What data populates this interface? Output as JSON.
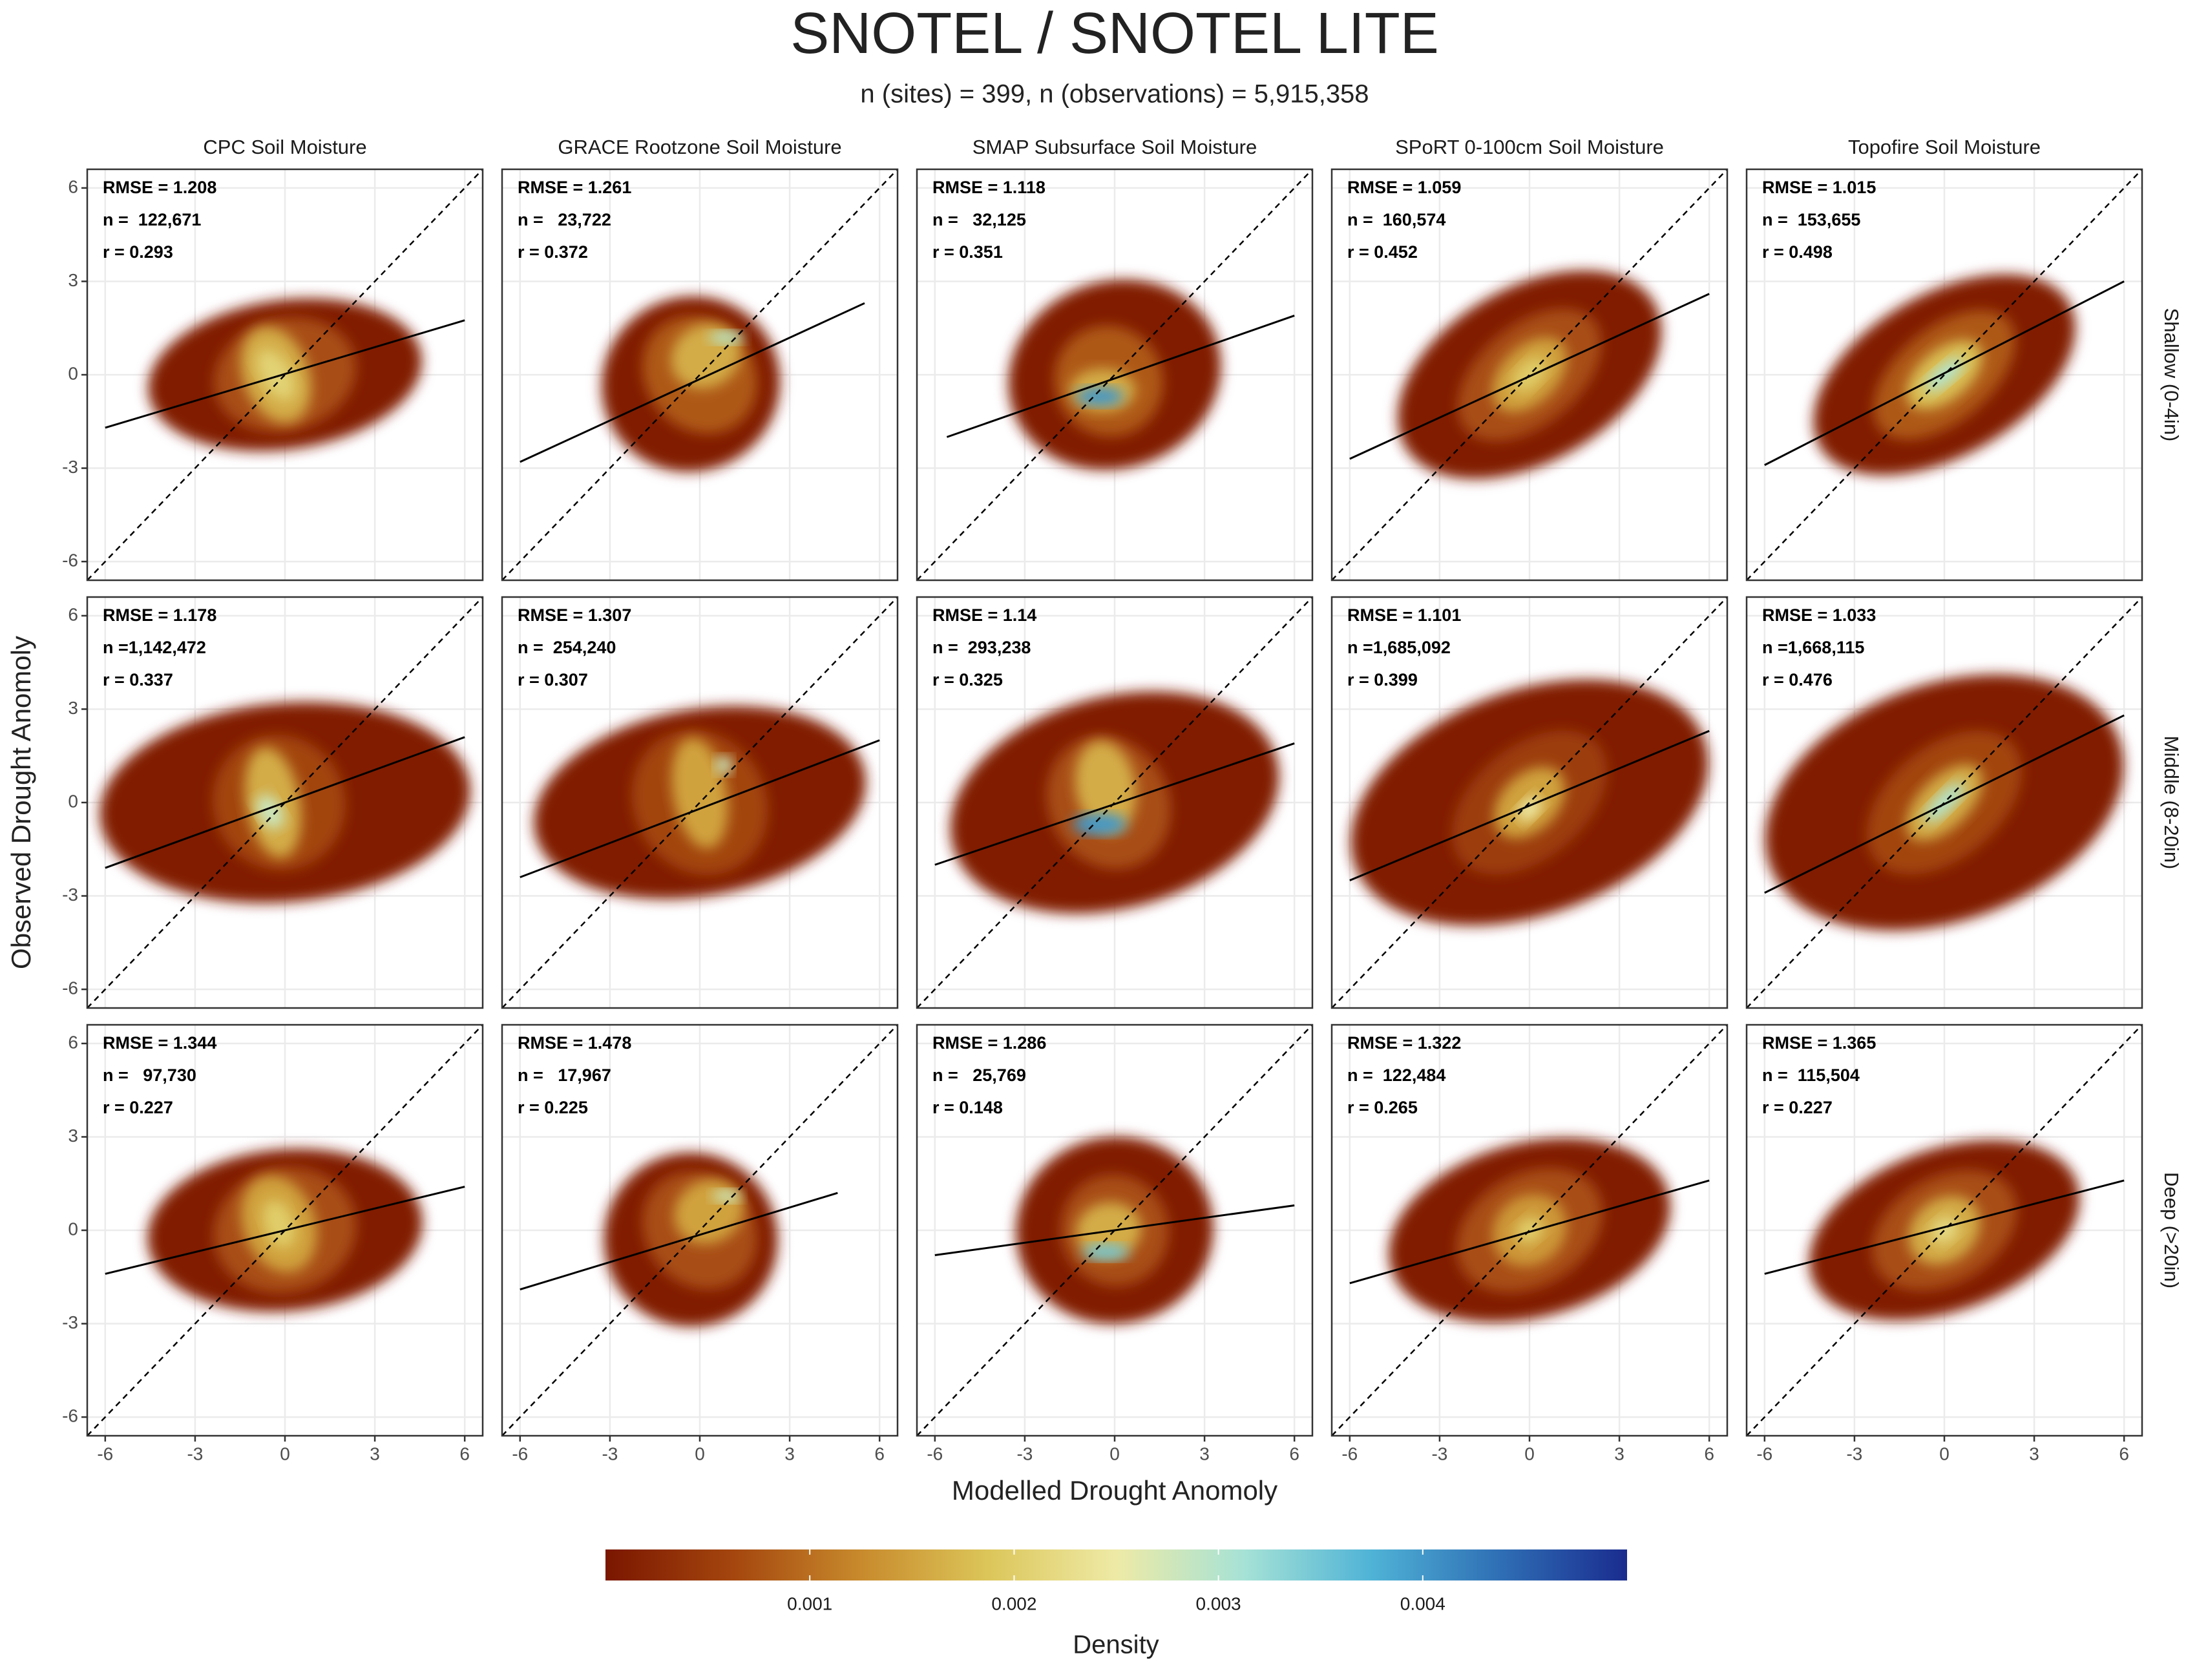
{
  "chart_data": {
    "type": "density2d",
    "title": "SNOTEL / SNOTEL LITE",
    "subtitle": "n (sites) = 399, n (observations) = 5,915,358",
    "x_label": "Modelled Drought Anomoly",
    "y_label": "Observed Drought Anomoly",
    "columns": [
      "CPC Soil Moisture",
      "GRACE Rootzone Soil Moisture",
      "SMAP Subsurface Soil Moisture",
      "SPoRT 0-100cm Soil Moisture",
      "Topofire Soil Moisture"
    ],
    "rows": [
      "Shallow (0-4in)",
      "Middle (8-20in)",
      "Deep (>20in)"
    ],
    "xlim": [
      -6.6,
      6.6
    ],
    "ylim": [
      -6.6,
      6.6
    ],
    "xticks": [
      -6,
      -3,
      0,
      3,
      6
    ],
    "yticks": [
      -6,
      -3,
      0,
      3,
      6
    ],
    "grid": true,
    "identity_line": true,
    "fit_color": "#000000",
    "colorbar": {
      "title": "Density",
      "lim": [
        0,
        0.005
      ],
      "ticks": [
        0.001,
        0.002,
        0.003,
        0.004
      ],
      "colors": [
        "#7a1600",
        "#a4460e",
        "#c88a2c",
        "#dcc65a",
        "#eeeaa6",
        "#a6e2d6",
        "#4fb3d6",
        "#2f6fb5",
        "#1a2c8f"
      ]
    },
    "panels": [
      [
        {
          "stats": [
            "RMSE = 1.208",
            "n =  122,671",
            "r = 0.293"
          ],
          "fit": {
            "x": [
              -6,
              6
            ],
            "y": [
              -1.7,
              1.75
            ]
          },
          "blobs": [
            {
              "x": 0,
              "y": 0,
              "rx": 4.6,
              "ry": 2.4,
              "angle": 8,
              "density": 0.0001
            },
            {
              "x": 0,
              "y": 0,
              "rx": 2.4,
              "ry": 1.8,
              "angle": 15,
              "density": 0.0007
            },
            {
              "x": -0.3,
              "y": 0,
              "rx": 1.1,
              "ry": 1.6,
              "angle": 20,
              "density": 0.0016
            },
            {
              "x": -0.3,
              "y": 0,
              "rx": 0.5,
              "ry": 0.9,
              "angle": 30,
              "density": 0.0021
            }
          ]
        },
        {
          "stats": [
            "RMSE = 1.261",
            "n =   23,722",
            "r = 0.372"
          ],
          "fit": {
            "x": [
              -6,
              5.5
            ],
            "y": [
              -2.8,
              2.3
            ]
          },
          "blobs": [
            {
              "x": -0.3,
              "y": -0.3,
              "rx": 3,
              "ry": 2.8,
              "angle": 30,
              "density": 0.0001
            },
            {
              "x": 0,
              "y": 0,
              "rx": 1.8,
              "ry": 2,
              "angle": 40,
              "density": 0.0008
            },
            {
              "x": 0.2,
              "y": 0.6,
              "rx": 1.2,
              "ry": 1,
              "angle": 30,
              "density": 0.0016
            },
            {
              "x": 0.9,
              "y": 1.2,
              "rx": 0.6,
              "ry": 0.2,
              "angle": 0,
              "density": 0.003
            }
          ]
        },
        {
          "stats": [
            "RMSE = 1.118",
            "n =   32,125",
            "r = 0.351"
          ],
          "fit": {
            "x": [
              -5.6,
              6
            ],
            "y": [
              -2,
              1.9
            ]
          },
          "blobs": [
            {
              "x": 0,
              "y": 0,
              "rx": 3.6,
              "ry": 3,
              "angle": 20,
              "density": 0.0001
            },
            {
              "x": -0.2,
              "y": -0.2,
              "rx": 1.8,
              "ry": 1.8,
              "angle": 30,
              "density": 0.0008
            },
            {
              "x": -0.4,
              "y": -0.5,
              "rx": 1.1,
              "ry": 0.7,
              "angle": 0,
              "density": 0.0016
            },
            {
              "x": -0.5,
              "y": -0.7,
              "rx": 0.8,
              "ry": 0.3,
              "angle": 0,
              "density": 0.004
            }
          ]
        },
        {
          "stats": [
            "RMSE = 1.059",
            "n =  160,574",
            "r = 0.452"
          ],
          "fit": {
            "x": [
              -6,
              6
            ],
            "y": [
              -2.7,
              2.6
            ]
          },
          "blobs": [
            {
              "x": 0,
              "y": 0,
              "rx": 4.8,
              "ry": 2.8,
              "angle": 30,
              "density": 0.0001
            },
            {
              "x": 0,
              "y": 0,
              "rx": 2.8,
              "ry": 1.6,
              "angle": 40,
              "density": 0.0007
            },
            {
              "x": 0,
              "y": 0,
              "rx": 1.5,
              "ry": 0.9,
              "angle": 45,
              "density": 0.0015
            },
            {
              "x": 0,
              "y": 0,
              "rx": 0.7,
              "ry": 0.4,
              "angle": 45,
              "density": 0.002
            }
          ]
        },
        {
          "stats": [
            "RMSE = 1.015",
            "n =  153,655",
            "r = 0.498"
          ],
          "fit": {
            "x": [
              -6,
              6
            ],
            "y": [
              -2.9,
              3
            ]
          },
          "blobs": [
            {
              "x": 0,
              "y": 0,
              "rx": 4.8,
              "ry": 2.6,
              "angle": 30,
              "density": 0.0001
            },
            {
              "x": 0,
              "y": 0,
              "rx": 2.8,
              "ry": 1.5,
              "angle": 40,
              "density": 0.0008
            },
            {
              "x": 0,
              "y": 0,
              "rx": 1.5,
              "ry": 0.8,
              "angle": 40,
              "density": 0.0018
            },
            {
              "x": 0,
              "y": 0,
              "rx": 0.8,
              "ry": 0.3,
              "angle": 40,
              "density": 0.003
            }
          ]
        }
      ],
      [
        {
          "stats": [
            "RMSE = 1.178",
            "n =1,142,472",
            "r = 0.337"
          ],
          "fit": {
            "x": [
              -6,
              6
            ],
            "y": [
              -2.1,
              2.1
            ]
          },
          "blobs": [
            {
              "x": 0,
              "y": 0,
              "rx": 6.2,
              "ry": 3.2,
              "angle": 5,
              "density": 0.0001
            },
            {
              "x": -0.2,
              "y": 0,
              "rx": 2.2,
              "ry": 2.2,
              "angle": 30,
              "density": 0.0006
            },
            {
              "x": -0.4,
              "y": 0,
              "rx": 0.9,
              "ry": 1.8,
              "angle": 10,
              "density": 0.0016
            },
            {
              "x": -0.5,
              "y": -0.3,
              "rx": 0.4,
              "ry": 0.6,
              "angle": 30,
              "density": 0.0028
            }
          ]
        },
        {
          "stats": [
            "RMSE = 1.307",
            "n =  254,240",
            "r = 0.307"
          ],
          "fit": {
            "x": [
              -6,
              6
            ],
            "y": [
              -2.4,
              2
            ]
          },
          "blobs": [
            {
              "x": 0,
              "y": 0,
              "rx": 5.6,
              "ry": 3,
              "angle": 10,
              "density": 0.0001
            },
            {
              "x": 0,
              "y": 0,
              "rx": 2.2,
              "ry": 2.4,
              "angle": 30,
              "density": 0.0006
            },
            {
              "x": 0,
              "y": 0.3,
              "rx": 0.9,
              "ry": 1.8,
              "angle": 10,
              "density": 0.0015
            },
            {
              "x": 0.8,
              "y": 1.2,
              "rx": 0.3,
              "ry": 0.3,
              "angle": 0,
              "density": 0.0028
            }
          ]
        },
        {
          "stats": [
            "RMSE = 1.14",
            "n =  293,238",
            "r = 0.325"
          ],
          "fit": {
            "x": [
              -6,
              6
            ],
            "y": [
              -2,
              1.9
            ]
          },
          "blobs": [
            {
              "x": 0,
              "y": 0,
              "rx": 5.6,
              "ry": 3.4,
              "angle": 15,
              "density": 0.0001
            },
            {
              "x": -0.2,
              "y": 0,
              "rx": 2,
              "ry": 2.2,
              "angle": 30,
              "density": 0.0007
            },
            {
              "x": -0.3,
              "y": 0.5,
              "rx": 1,
              "ry": 1.5,
              "angle": 10,
              "density": 0.0016
            },
            {
              "x": -0.5,
              "y": -0.7,
              "rx": 0.9,
              "ry": 0.35,
              "angle": 0,
              "density": 0.004
            }
          ]
        },
        {
          "stats": [
            "RMSE = 1.101",
            "n =1,685,092",
            "r = 0.399"
          ],
          "fit": {
            "x": [
              -6,
              6
            ],
            "y": [
              -2.5,
              2.3
            ]
          },
          "blobs": [
            {
              "x": 0,
              "y": 0,
              "rx": 6.2,
              "ry": 3.6,
              "angle": 20,
              "density": 0.0001
            },
            {
              "x": 0,
              "y": 0,
              "rx": 3,
              "ry": 1.8,
              "angle": 40,
              "density": 0.0005
            },
            {
              "x": 0,
              "y": 0,
              "rx": 1.4,
              "ry": 0.9,
              "angle": 45,
              "density": 0.0015
            },
            {
              "x": 0,
              "y": -0.2,
              "rx": 0.5,
              "ry": 0.3,
              "angle": 45,
              "density": 0.0025
            }
          ]
        },
        {
          "stats": [
            "RMSE = 1.033",
            "n =1,668,115",
            "r = 0.476"
          ],
          "fit": {
            "x": [
              -6,
              6
            ],
            "y": [
              -2.9,
              2.8
            ]
          },
          "blobs": [
            {
              "x": 0,
              "y": 0,
              "rx": 6.2,
              "ry": 3.8,
              "angle": 20,
              "density": 0.0001
            },
            {
              "x": 0,
              "y": 0,
              "rx": 3,
              "ry": 1.8,
              "angle": 40,
              "density": 0.0006
            },
            {
              "x": 0,
              "y": 0,
              "rx": 1.6,
              "ry": 0.8,
              "angle": 45,
              "density": 0.0016
            },
            {
              "x": 0,
              "y": 0,
              "rx": 0.9,
              "ry": 0.3,
              "angle": 45,
              "density": 0.003
            }
          ]
        }
      ],
      [
        {
          "stats": [
            "RMSE = 1.344",
            "n =   97,730",
            "r = 0.227"
          ],
          "fit": {
            "x": [
              -6,
              6
            ],
            "y": [
              -1.4,
              1.4
            ]
          },
          "blobs": [
            {
              "x": 0,
              "y": 0,
              "rx": 4.6,
              "ry": 2.6,
              "angle": 5,
              "density": 0.0001
            },
            {
              "x": 0,
              "y": 0,
              "rx": 2.4,
              "ry": 2,
              "angle": 15,
              "density": 0.0007
            },
            {
              "x": -0.2,
              "y": 0.2,
              "rx": 1.2,
              "ry": 1.6,
              "angle": 20,
              "density": 0.0015
            },
            {
              "x": -0.2,
              "y": 0.2,
              "rx": 0.5,
              "ry": 0.8,
              "angle": 20,
              "density": 0.002
            }
          ]
        },
        {
          "stats": [
            "RMSE = 1.478",
            "n =   17,967",
            "r = 0.225"
          ],
          "fit": {
            "x": [
              -6,
              4.6
            ],
            "y": [
              -1.9,
              1.2
            ]
          },
          "blobs": [
            {
              "x": -0.3,
              "y": -0.3,
              "rx": 2.9,
              "ry": 2.8,
              "angle": 30,
              "density": 0.0001
            },
            {
              "x": 0,
              "y": 0,
              "rx": 1.8,
              "ry": 2,
              "angle": 40,
              "density": 0.0007
            },
            {
              "x": 0.3,
              "y": 0.6,
              "rx": 1.2,
              "ry": 1,
              "angle": 30,
              "density": 0.0015
            },
            {
              "x": 0.9,
              "y": 1.1,
              "rx": 0.5,
              "ry": 0.2,
              "angle": 0,
              "density": 0.0028
            }
          ]
        },
        {
          "stats": [
            "RMSE = 1.286",
            "n =   25,769",
            "r = 0.148"
          ],
          "fit": {
            "x": [
              -6,
              6
            ],
            "y": [
              -0.8,
              0.8
            ]
          },
          "blobs": [
            {
              "x": 0,
              "y": 0,
              "rx": 3.3,
              "ry": 3,
              "angle": 10,
              "density": 0.0001
            },
            {
              "x": 0,
              "y": 0,
              "rx": 1.8,
              "ry": 1.8,
              "angle": 20,
              "density": 0.0007
            },
            {
              "x": -0.2,
              "y": 0,
              "rx": 1.1,
              "ry": 0.9,
              "angle": 10,
              "density": 0.0016
            },
            {
              "x": -0.3,
              "y": -0.7,
              "rx": 0.8,
              "ry": 0.25,
              "angle": 0,
              "density": 0.0035
            }
          ]
        },
        {
          "stats": [
            "RMSE = 1.322",
            "n =  122,484",
            "r = 0.265"
          ],
          "fit": {
            "x": [
              -6,
              6
            ],
            "y": [
              -1.7,
              1.6
            ]
          },
          "blobs": [
            {
              "x": 0,
              "y": 0,
              "rx": 4.8,
              "ry": 2.8,
              "angle": 15,
              "density": 0.0001
            },
            {
              "x": 0,
              "y": 0,
              "rx": 2.6,
              "ry": 1.8,
              "angle": 30,
              "density": 0.0007
            },
            {
              "x": 0,
              "y": 0,
              "rx": 1.3,
              "ry": 1.1,
              "angle": 40,
              "density": 0.0014
            },
            {
              "x": 0,
              "y": 0,
              "rx": 0.5,
              "ry": 0.4,
              "angle": 40,
              "density": 0.002
            }
          ]
        },
        {
          "stats": [
            "RMSE = 1.365",
            "n =  115,504",
            "r = 0.227"
          ],
          "fit": {
            "x": [
              -6,
              6
            ],
            "y": [
              -1.4,
              1.6
            ]
          },
          "blobs": [
            {
              "x": 0,
              "y": 0,
              "rx": 4.7,
              "ry": 2.6,
              "angle": 20,
              "density": 0.0001
            },
            {
              "x": 0,
              "y": 0,
              "rx": 2.6,
              "ry": 1.7,
              "angle": 30,
              "density": 0.0007
            },
            {
              "x": 0,
              "y": 0,
              "rx": 1.3,
              "ry": 1,
              "angle": 40,
              "density": 0.0016
            },
            {
              "x": 0,
              "y": 0,
              "rx": 0.5,
              "ry": 0.4,
              "angle": 40,
              "density": 0.0022
            }
          ]
        }
      ]
    ]
  }
}
